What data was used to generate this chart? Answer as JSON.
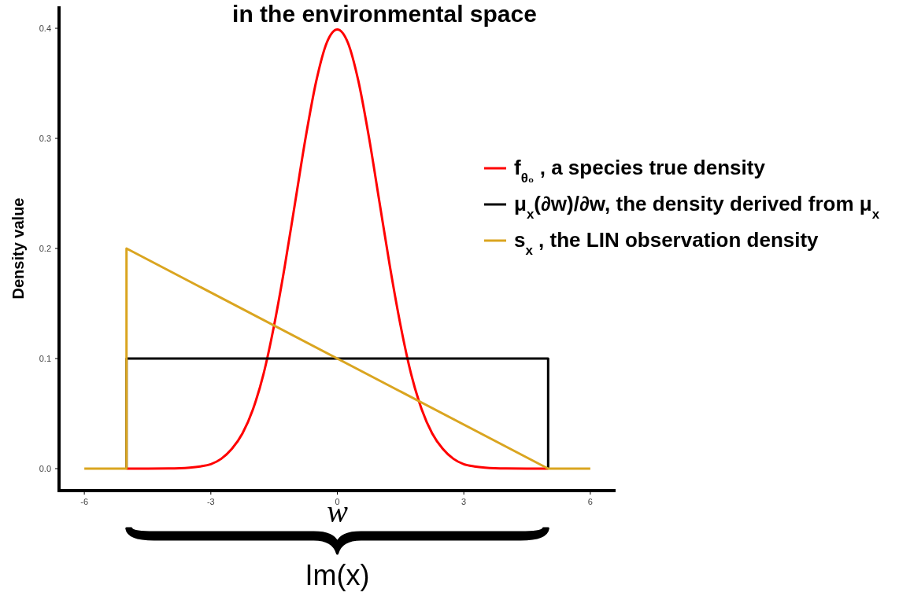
{
  "chart_data": {
    "type": "line",
    "title": "in the environmental space",
    "xlabel": "w",
    "ylabel": "Density value",
    "xlim": [
      -6.6,
      6.6
    ],
    "ylim": [
      -0.02,
      0.42
    ],
    "xticks": [
      -6,
      -3,
      0,
      3,
      6
    ],
    "yticks": [
      {
        "value": 0,
        "label": "0.0"
      },
      {
        "value": 0.1,
        "label": "0.1"
      },
      {
        "value": 0.2,
        "label": "0.2"
      },
      {
        "value": 0.3,
        "label": "0.3"
      },
      {
        "value": 0.4,
        "label": "0.4"
      }
    ],
    "grid": false,
    "legend": "right",
    "marker": "none",
    "line_style": "solid",
    "annotations": [
      "Im(x)"
    ],
    "series": [
      {
        "name": "f$_{θ₀}$ , a species true density",
        "color": "#ff0000",
        "x": [
          -5,
          -4.5,
          -4,
          -3.5,
          -3.25,
          -3,
          -2.75,
          -2.5,
          -2.25,
          -2,
          -1.75,
          -1.5,
          -1.25,
          -1,
          -0.75,
          -0.5,
          -0.25,
          0,
          0.25,
          0.5,
          0.75,
          1,
          1.25,
          1.5,
          1.75,
          2,
          2.25,
          2.5,
          2.75,
          3,
          3.25,
          3.5,
          4,
          4.5,
          5
        ],
        "values": [
          0,
          0,
          0.0001,
          0.0009,
          0.002,
          0.004,
          0.009,
          0.018,
          0.032,
          0.054,
          0.086,
          0.13,
          0.183,
          0.242,
          0.301,
          0.352,
          0.387,
          0.399,
          0.387,
          0.352,
          0.301,
          0.242,
          0.183,
          0.13,
          0.086,
          0.054,
          0.032,
          0.018,
          0.009,
          0.004,
          0.002,
          0.0009,
          0.0001,
          0,
          0
        ]
      },
      {
        "name": "μ$_{x}$(∂w)/∂w, the density derived from μ$_{x}$",
        "color": "#000000",
        "x": [
          -5,
          -5,
          5,
          5
        ],
        "values": [
          0,
          0.1,
          0.1,
          0
        ]
      },
      {
        "name": "s$_{x}$ , the LIN observation density",
        "color": "#daa520",
        "x": [
          -6,
          -5,
          -5,
          5,
          6
        ],
        "values": [
          0,
          0,
          0.2,
          0,
          0
        ]
      }
    ]
  }
}
